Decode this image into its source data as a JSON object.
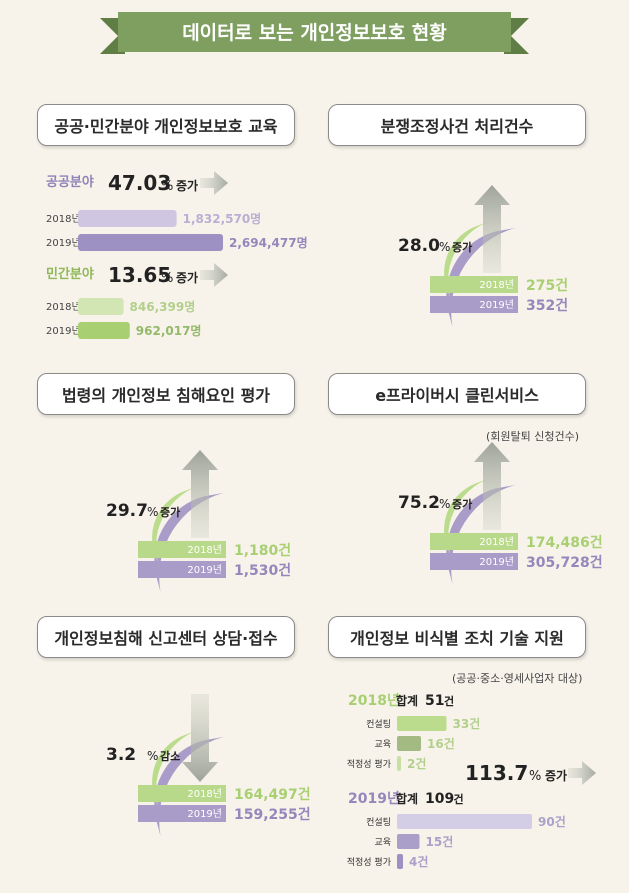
{
  "title": "데이터로 보는 개인정보보호 현황",
  "colors": {
    "purple": "#a99cc9",
    "purple_dark": "#9487bb",
    "green": "#b9d98a",
    "green_dark": "#9cc463",
    "banner": "#7f9f60"
  },
  "chart_data": [
    {
      "id": "education",
      "type": "bar",
      "title": "공공·민간분야 개인정보보호 교육",
      "groups": [
        {
          "name": "공공분야",
          "change": "47.03",
          "change_unit": "%",
          "change_label": "증가",
          "categories": [
            "2018년",
            "2019년"
          ],
          "values": [
            1832570,
            2694477
          ],
          "value_labels": [
            "1,832,570명",
            "2,694,477명"
          ]
        },
        {
          "name": "민간분야",
          "change": "13.65",
          "change_unit": "%",
          "change_label": "증가",
          "categories": [
            "2018년",
            "2019년"
          ],
          "values": [
            846399,
            962017
          ],
          "value_labels": [
            "846,399명",
            "962,017명"
          ]
        }
      ]
    },
    {
      "id": "dispute",
      "type": "bar",
      "title": "분쟁조정사건 처리건수",
      "change": "28.0",
      "change_unit": "%",
      "change_label": "증가",
      "categories": [
        "2018년",
        "2019년"
      ],
      "values": [
        275,
        352
      ],
      "value_labels": [
        "275건",
        "352건"
      ]
    },
    {
      "id": "law",
      "type": "bar",
      "title": "법령의 개인정보 침해요인 평가",
      "change": "29.7",
      "change_unit": "%",
      "change_label": "증가",
      "categories": [
        "2018년",
        "2019년"
      ],
      "values": [
        1180,
        1530
      ],
      "value_labels": [
        "1,180건",
        "1,530건"
      ]
    },
    {
      "id": "eprivacy",
      "type": "bar",
      "title": "e프라이버시 클린서비스",
      "note": "(회원탈퇴 신청건수)",
      "change": "75.2",
      "change_unit": "%",
      "change_label": "증가",
      "categories": [
        "2018년",
        "2019년"
      ],
      "values": [
        174486,
        305728
      ],
      "value_labels": [
        "174,486건",
        "305,728건"
      ]
    },
    {
      "id": "report",
      "type": "bar",
      "title": "개인정보침해 신고센터 상담·접수",
      "change": "3.2",
      "change_unit": "%",
      "change_label": "감소",
      "categories": [
        "2018년",
        "2019년"
      ],
      "values": [
        164497,
        159255
      ],
      "value_labels": [
        "164,497건",
        "159,255건"
      ]
    },
    {
      "id": "deident",
      "type": "bar",
      "title": "개인정보 비식별 조치 기술 지원",
      "note": "(공공·중소·영세사업자 대상)",
      "change": "113.7",
      "change_unit": "%",
      "change_label": "증가",
      "total_label": "합계",
      "years": [
        {
          "year": "2018년",
          "total": "51",
          "total_unit": "건",
          "categories": [
            "컨설팅",
            "교육",
            "적정성 평가"
          ],
          "values": [
            33,
            16,
            2
          ],
          "value_labels": [
            "33건",
            "16건",
            "2건"
          ]
        },
        {
          "year": "2019년",
          "total": "109",
          "total_unit": "건",
          "categories": [
            "컨설팅",
            "교육",
            "적정성 평가"
          ],
          "values": [
            90,
            15,
            4
          ],
          "value_labels": [
            "90건",
            "15건",
            "4건"
          ]
        }
      ]
    }
  ]
}
